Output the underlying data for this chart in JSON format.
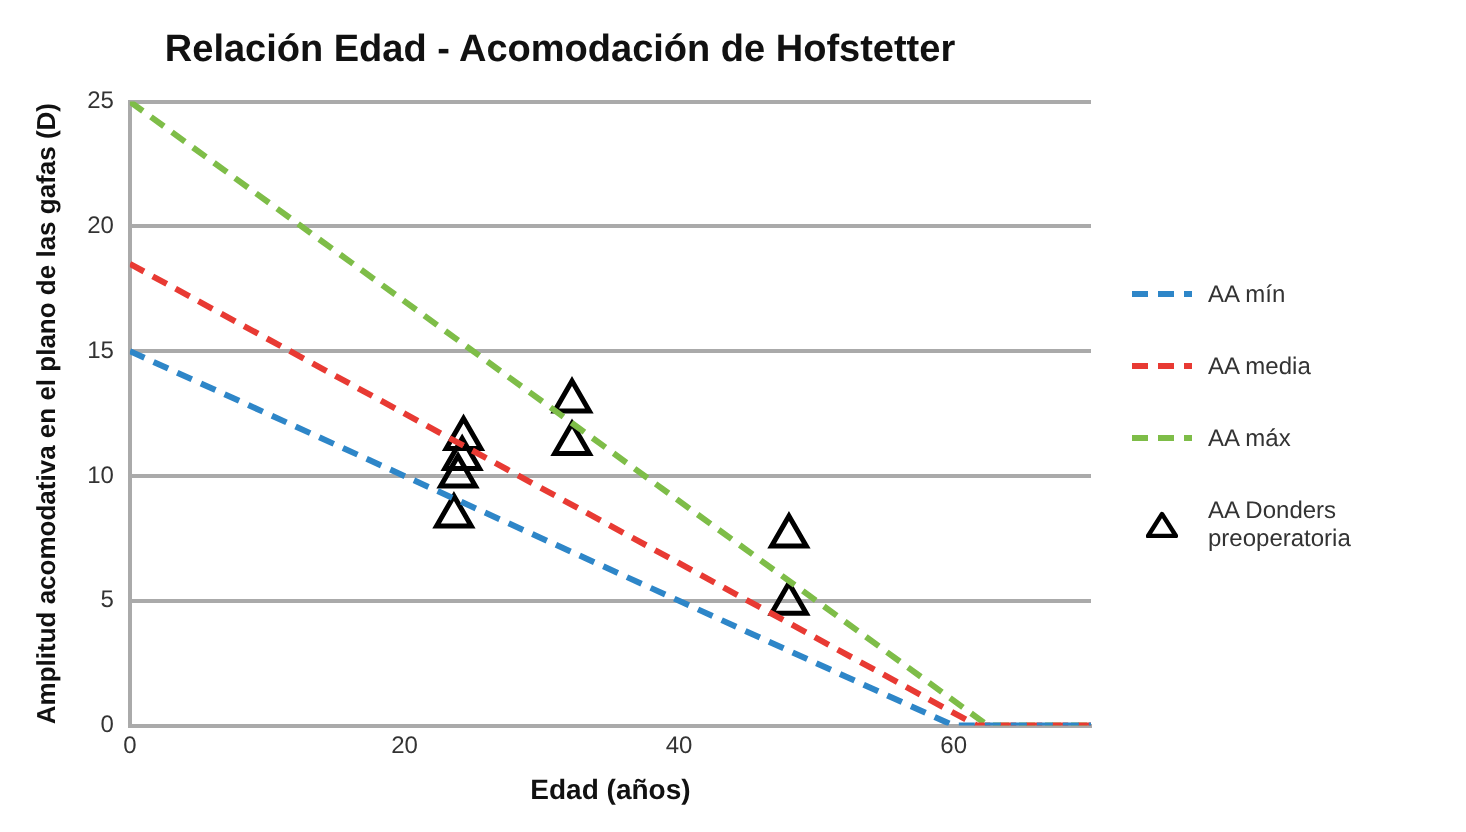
{
  "chart_data": {
    "type": "line",
    "title": "Relación Edad - Acomodación de Hofstetter",
    "xlabel": "Edad (años)",
    "ylabel": "Amplitud acomodativa en el plano de las gafas (D)",
    "xlim": [
      0,
      70
    ],
    "xticks": [
      0,
      20,
      40,
      60
    ],
    "ylim": [
      0,
      25
    ],
    "yticks": [
      0,
      5,
      10,
      15,
      20,
      25
    ],
    "grid": "y",
    "legend": "right",
    "line_style": "dashed",
    "series": [
      {
        "name": "AA mín",
        "color": "#2e86c8",
        "x": [
          0,
          60,
          70
        ],
        "values": [
          15,
          0,
          0
        ]
      },
      {
        "name": "AA media",
        "color": "#e83a33",
        "x": [
          0,
          61.7,
          70
        ],
        "values": [
          18.5,
          0,
          0
        ]
      },
      {
        "name": "AA máx",
        "color": "#7ebd48",
        "x": [
          0,
          62.5,
          70
        ],
        "values": [
          25,
          0,
          0
        ]
      },
      {
        "name": "AA Donders preoperatoria",
        "type": "scatter",
        "marker": "triangle",
        "color": "#000000",
        "x": [
          24.3,
          24.2,
          23.9,
          23.6,
          32.2,
          32.2,
          48,
          48
        ],
        "values": [
          11.5,
          10.7,
          10.0,
          8.4,
          13.0,
          11.3,
          7.6,
          4.9
        ]
      }
    ]
  }
}
